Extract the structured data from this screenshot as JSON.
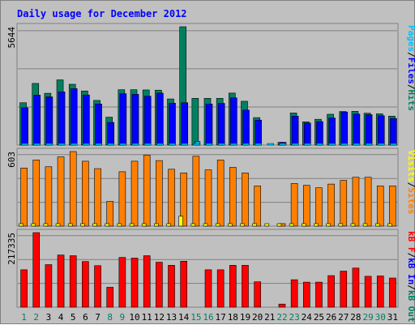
{
  "chart_data": {
    "type": "bar",
    "title": "Daily usage for December 2012",
    "colors": {
      "background": "#c0c0c0",
      "plot_background": "#c0c0c0",
      "title": "#0000ff",
      "hits": "#00805f",
      "files": "#0000ff",
      "pages": "#00c0ff",
      "visits": "#ffff00",
      "sites": "#ff8000",
      "kb": "#ff0000",
      "day_weekday": "#000000",
      "day_weekend": "#00805f",
      "separator": "#808080"
    },
    "days": [
      "1",
      "2",
      "3",
      "4",
      "5",
      "6",
      "7",
      "8",
      "9",
      "10",
      "11",
      "12",
      "13",
      "14",
      "15",
      "16",
      "17",
      "18",
      "19",
      "20",
      "21",
      "22",
      "23",
      "24",
      "25",
      "26",
      "27",
      "28",
      "29",
      "30",
      "31"
    ],
    "weekend_days": [
      "1",
      "2",
      "8",
      "9",
      "15",
      "16",
      "22",
      "23",
      "29",
      "30"
    ],
    "panels": [
      {
        "id": "top",
        "max_label": "5644",
        "max_value": 5644,
        "series": [
          {
            "name": "Hits",
            "values": [
              2020,
              2940,
              2470,
              3110,
              2900,
              2580,
              2130,
              1330,
              2640,
              2640,
              2630,
              2620,
              2200,
              5644,
              2230,
              2230,
              2230,
              2480,
              2090,
              1310,
              0,
              130,
              1530,
              1110,
              1230,
              1470,
              1600,
              1610,
              1520,
              1490,
              1380
            ]
          },
          {
            "name": "Files",
            "values": [
              1780,
              2380,
              2300,
              2540,
              2690,
              2390,
              1960,
              1080,
              2450,
              2420,
              2330,
              2480,
              2000,
              2020,
              0,
              1960,
              1990,
              2250,
              1670,
              1190,
              0,
              130,
              1380,
              1050,
              1120,
              1290,
              1580,
              1480,
              1450,
              1400,
              1270
            ]
          },
          {
            "name": "Pages",
            "values": [
              0,
              0,
              0,
              0,
              0,
              0,
              0,
              0,
              0,
              0,
              0,
              0,
              0,
              0,
              170,
              0,
              0,
              0,
              0,
              0,
              0,
              0,
              0,
              0,
              0,
              0,
              0,
              0,
              0,
              0,
              0
            ]
          }
        ],
        "right_labels": [
          {
            "text": "Pages",
            "color": "#00c0ff"
          },
          {
            "text": "/",
            "color": "#000000"
          },
          {
            "text": "Files",
            "color": "#0000ff"
          },
          {
            "text": "/",
            "color": "#000000"
          },
          {
            "text": "Hits",
            "color": "#00805f"
          }
        ]
      },
      {
        "id": "middle",
        "max_label": "603",
        "max_value": 603,
        "series": [
          {
            "name": "Visits",
            "values": [
              0,
              0,
              0,
              0,
              0,
              0,
              0,
              0,
              0,
              0,
              0,
              0,
              0,
              80,
              0,
              0,
              0,
              0,
              0,
              0,
              0,
              0,
              0,
              0,
              0,
              0,
              0,
              0,
              0,
              0,
              0
            ]
          },
          {
            "name": "Sites",
            "values": [
              470,
              535,
              480,
              560,
              603,
              525,
              465,
              200,
              440,
              525,
              575,
              530,
              460,
              430,
              565,
              455,
              535,
              475,
              430,
              325,
              0,
              20,
              345,
              330,
              310,
              340,
              370,
              395,
              395,
              325,
              325
            ]
          }
        ],
        "right_labels": [
          {
            "text": "Visits",
            "color": "#ffff00"
          },
          {
            "text": "/",
            "color": "#000000"
          },
          {
            "text": "Sites",
            "color": "#ff8000"
          }
        ]
      },
      {
        "id": "bottom",
        "max_label": "217335",
        "max_value": 217335,
        "series": [
          {
            "name": "kB F",
            "values": [
              109000,
              217335,
              124000,
              152000,
              150000,
              133000,
              121000,
              58000,
              145000,
              143000,
              150000,
              131000,
              122000,
              134000,
              0,
              109000,
              109000,
              122000,
              122000,
              74000,
              0,
              9000,
              80000,
              73000,
              73000,
              92000,
              105000,
              114000,
              90000,
              91000,
              85000
            ]
          }
        ],
        "right_labels": [
          {
            "text": "kB F",
            "color": "#ff0000"
          },
          {
            "text": "/",
            "color": "#000000"
          },
          {
            "text": "kB In",
            "color": "#0000ff"
          },
          {
            "text": "/",
            "color": "#000000"
          },
          {
            "text": "kB Out",
            "color": "#00805f"
          }
        ]
      }
    ]
  }
}
